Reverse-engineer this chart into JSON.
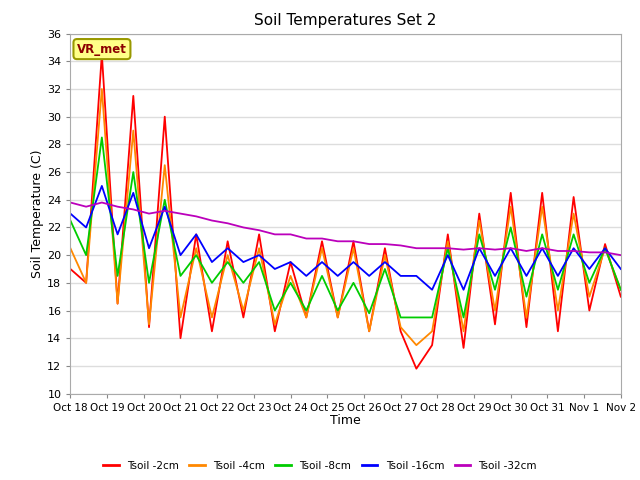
{
  "title": "Soil Temperatures Set 2",
  "xlabel": "Time",
  "ylabel": "Soil Temperature (C)",
  "ylim": [
    10,
    36
  ],
  "yticks": [
    10,
    12,
    14,
    16,
    18,
    20,
    22,
    24,
    26,
    28,
    30,
    32,
    34,
    36
  ],
  "xtick_labels": [
    "Oct 18",
    "Oct 19",
    "Oct 20",
    "Oct 21",
    "Oct 22",
    "Oct 23",
    "Oct 24",
    "Oct 25",
    "Oct 26",
    "Oct 27",
    "Oct 28",
    "Oct 29",
    "Oct 30",
    "Oct 31",
    "Nov 1",
    "Nov 2"
  ],
  "watermark": "VR_met",
  "plot_bg_color": "#ffffff",
  "fig_bg_color": "#ffffff",
  "grid_color": "#dddddd",
  "colors": {
    "2cm": "#ff0000",
    "4cm": "#ff8800",
    "8cm": "#00cc00",
    "16cm": "#0000ff",
    "32cm": "#bb00bb"
  },
  "legend_labels": [
    "Tsoil -2cm",
    "Tsoil -4cm",
    "Tsoil -8cm",
    "Tsoil -16cm",
    "Tsoil -32cm"
  ],
  "t2cm": [
    19.0,
    18.0,
    34.5,
    16.5,
    31.5,
    14.8,
    30.0,
    14.0,
    21.5,
    14.5,
    21.0,
    15.5,
    21.5,
    14.5,
    19.5,
    15.5,
    21.0,
    15.5,
    21.0,
    14.5,
    20.5,
    14.5,
    11.8,
    13.5,
    21.5,
    13.3,
    23.0,
    15.0,
    24.5,
    14.8,
    24.5,
    14.5,
    24.2,
    16.0,
    20.8,
    17.0
  ],
  "t4cm": [
    20.5,
    18.0,
    32.0,
    16.5,
    29.0,
    15.0,
    26.5,
    15.5,
    20.5,
    15.5,
    20.0,
    16.0,
    20.5,
    15.0,
    18.5,
    15.5,
    20.5,
    15.5,
    20.5,
    14.5,
    20.0,
    14.8,
    13.5,
    14.5,
    21.0,
    14.5,
    22.5,
    16.0,
    23.5,
    15.5,
    23.5,
    16.0,
    23.0,
    17.0,
    20.5,
    17.5
  ],
  "t8cm": [
    22.5,
    20.0,
    28.5,
    18.5,
    26.0,
    18.0,
    24.0,
    18.5,
    20.0,
    18.0,
    19.5,
    18.0,
    19.5,
    16.0,
    18.0,
    16.0,
    18.5,
    16.0,
    18.0,
    15.8,
    19.0,
    15.5,
    15.5,
    15.5,
    20.5,
    15.5,
    21.5,
    17.5,
    22.0,
    17.0,
    21.5,
    17.5,
    21.5,
    18.0,
    20.5,
    17.5
  ],
  "t16cm": [
    23.0,
    22.0,
    25.0,
    21.5,
    24.5,
    20.5,
    23.5,
    20.0,
    21.5,
    19.5,
    20.5,
    19.5,
    20.0,
    19.0,
    19.5,
    18.5,
    19.5,
    18.5,
    19.5,
    18.5,
    19.5,
    18.5,
    18.5,
    17.5,
    20.0,
    17.5,
    20.5,
    18.5,
    20.5,
    18.5,
    20.5,
    18.5,
    20.5,
    19.0,
    20.5,
    19.0
  ],
  "t32cm": [
    23.8,
    23.5,
    23.8,
    23.5,
    23.3,
    23.0,
    23.2,
    23.0,
    22.8,
    22.5,
    22.3,
    22.0,
    21.8,
    21.5,
    21.5,
    21.2,
    21.2,
    21.0,
    21.0,
    20.8,
    20.8,
    20.7,
    20.5,
    20.5,
    20.5,
    20.4,
    20.5,
    20.4,
    20.5,
    20.3,
    20.5,
    20.3,
    20.3,
    20.2,
    20.2,
    20.0
  ]
}
